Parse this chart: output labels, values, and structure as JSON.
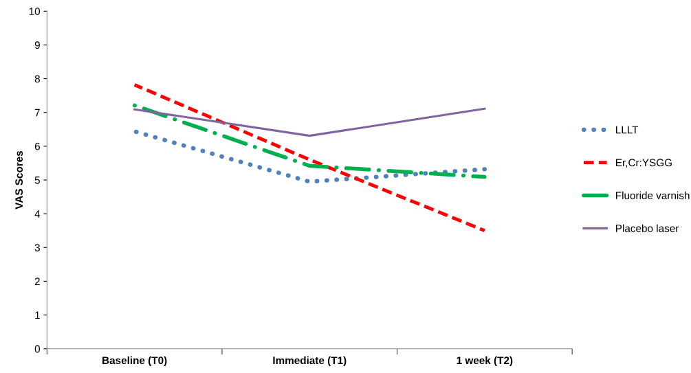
{
  "chart_data": {
    "type": "line",
    "ylabel": "VAS Scores",
    "categories": [
      "Baseline (T0)",
      "Immediate (T1)",
      "1 week (T2)"
    ],
    "series": [
      {
        "name": "LLLT",
        "color": "#4f81bd",
        "values": [
          6.44,
          4.95,
          5.32
        ],
        "line_style": "dotted"
      },
      {
        "name": "Er,Cr:YSGG",
        "color": "#ff0000",
        "values": [
          7.82,
          5.6,
          3.5
        ],
        "line_style": "dashed"
      },
      {
        "name": "Fluoride varnish",
        "color": "#00b050",
        "values": [
          7.21,
          5.42,
          5.09
        ],
        "line_style": "dashdot"
      },
      {
        "name": "Placebo laser",
        "color": "#8064a2",
        "values": [
          7.09,
          6.31,
          7.11
        ],
        "line_style": "solid"
      }
    ],
    "ylim": [
      0,
      10
    ],
    "yticks": [
      0,
      1,
      2,
      3,
      4,
      5,
      6,
      7,
      8,
      9,
      10
    ],
    "grid": false,
    "legend": "right",
    "marker": "none"
  }
}
